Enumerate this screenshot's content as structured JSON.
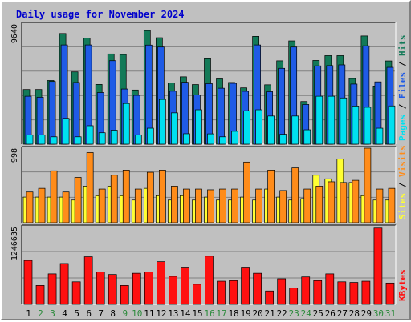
{
  "title": "Daily usage for November 2024",
  "colors": {
    "background": "#c0c0c0",
    "title": "#0000cc",
    "pages": "#00e0f0",
    "files": "#1f5be6",
    "hits": "#137a58",
    "sites": "#ffff33",
    "visits": "#ff8c1a",
    "kbytes": "#ff1010",
    "weekend_day": "#2a8a3a",
    "weekday_day": "#000000",
    "grid": "#808080"
  },
  "chart_data": [
    {
      "type": "bar",
      "title": "Daily usage for November 2024",
      "categories": [
        "1",
        "2",
        "3",
        "4",
        "5",
        "6",
        "7",
        "8",
        "9",
        "10",
        "11",
        "12",
        "13",
        "14",
        "15",
        "16",
        "17",
        "18",
        "19",
        "20",
        "21",
        "22",
        "23",
        "24",
        "25",
        "26",
        "27",
        "28",
        "29",
        "30",
        "31"
      ],
      "weekend_days": [
        "2",
        "3",
        "9",
        "10",
        "16",
        "17",
        "23",
        "24",
        "30",
        "31"
      ],
      "ytick": "9640",
      "ylim": [
        0,
        9640
      ],
      "legend": [
        "Pages",
        "Files",
        "Hits"
      ],
      "series": [
        {
          "name": "Hits",
          "values": [
            4450,
            4450,
            5180,
            9000,
            5880,
            8640,
            4860,
            7340,
            7290,
            4410,
            9240,
            8660,
            4980,
            5480,
            4850,
            6950,
            5310,
            5020,
            4580,
            8770,
            4830,
            6780,
            8400,
            3470,
            6810,
            7200,
            7200,
            5340,
            8800,
            4730,
            6770
          ]
        },
        {
          "name": "Files",
          "values": [
            3900,
            3820,
            5100,
            8070,
            5020,
            8070,
            4200,
            6790,
            4490,
            3970,
            8060,
            7900,
            4310,
            5040,
            4000,
            4920,
            4550,
            4950,
            4300,
            8070,
            4270,
            6170,
            7900,
            3230,
            6370,
            6390,
            6450,
            4890,
            8000,
            5070,
            6250
          ]
        },
        {
          "name": "Pages",
          "values": [
            760,
            760,
            600,
            2100,
            600,
            1500,
            930,
            1140,
            3310,
            760,
            1300,
            3640,
            2550,
            850,
            2800,
            840,
            600,
            1050,
            2720,
            2800,
            2290,
            810,
            2290,
            1170,
            3900,
            3900,
            3760,
            3100,
            3000,
            1300,
            3110
          ]
        }
      ]
    },
    {
      "type": "bar",
      "ytick": "998",
      "ylim": [
        0,
        998
      ],
      "legend": [
        "Sites",
        "Visits"
      ],
      "series": [
        {
          "name": "Visits",
          "values": [
            420,
            470,
            710,
            420,
            620,
            960,
            460,
            650,
            720,
            460,
            690,
            720,
            500,
            460,
            460,
            450,
            460,
            460,
            830,
            460,
            720,
            440,
            750,
            460,
            500,
            560,
            550,
            580,
            1020,
            460,
            470
          ]
        },
        {
          "name": "Sites",
          "values": [
            350,
            350,
            350,
            350,
            310,
            500,
            370,
            500,
            370,
            310,
            470,
            370,
            310,
            370,
            310,
            350,
            310,
            310,
            350,
            310,
            460,
            350,
            310,
            330,
            650,
            600,
            870,
            550,
            370,
            310,
            310
          ]
        }
      ]
    },
    {
      "type": "bar",
      "ytick": "1246635",
      "ylim": [
        0,
        1246635
      ],
      "legend": [
        "KBytes"
      ],
      "series": [
        {
          "name": "KBytes",
          "values": [
            720000,
            310000,
            500000,
            670000,
            370000,
            780000,
            530000,
            490000,
            310000,
            510000,
            530000,
            700000,
            460000,
            610000,
            330000,
            790000,
            380000,
            390000,
            610000,
            510000,
            220000,
            420000,
            270000,
            450000,
            390000,
            500000,
            370000,
            360000,
            380000,
            1250000,
            350000
          ]
        }
      ]
    }
  ]
}
